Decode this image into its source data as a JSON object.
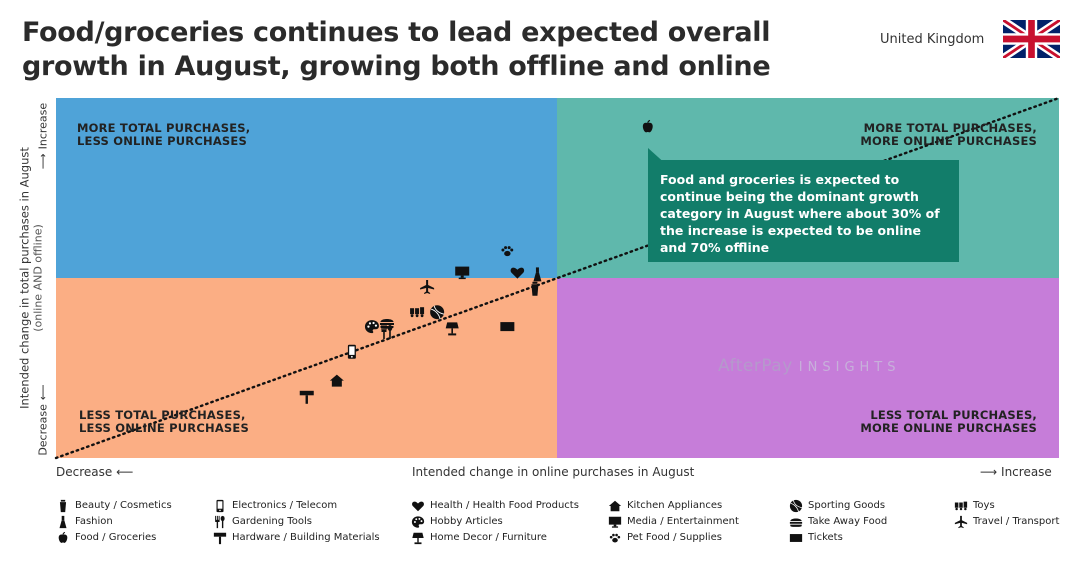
{
  "title": "Food/groceries continues to lead expected overall growth in August, growing both offline and online",
  "country": "United Kingdom",
  "watermark": {
    "brand": "AfterPay",
    "suffix": "INSIGHTS"
  },
  "chart_data": {
    "type": "scatter",
    "x_axis": {
      "label": "Intended change in online purchases in August",
      "low": "Decrease",
      "high": "Increase"
    },
    "y_axis": {
      "label": "Intended change in total purchases in August",
      "sublabel": "(online AND offline)",
      "low": "Decrease",
      "high": "Increase"
    },
    "quadrants": {
      "top_left": [
        "MORE TOTAL PURCHASES,",
        "LESS ONLINE PURCHASES"
      ],
      "top_right": [
        "MORE TOTAL PURCHASES,",
        "MORE ONLINE PURCHASES"
      ],
      "bottom_left": [
        "LESS TOTAL PURCHASES,",
        "LESS ONLINE PURCHASES"
      ],
      "bottom_right": [
        "LESS TOTAL PURCHASES,",
        "MORE ONLINE PURCHASES"
      ]
    },
    "colors": {
      "top_left": "#4fa3d8",
      "top_right": "#5fb8ac",
      "bottom_left": "#fbae84",
      "bottom_right": "#c67dd9",
      "callout": "#127d6a"
    },
    "callout": "Food and groceries is expected to continue being the dominant growth category in August where about 30% of the increase is expected to be online and 70% offline",
    "trend": {
      "type": "dotted-line",
      "x": [
        -1.0,
        1.0
      ],
      "y": [
        -1.0,
        1.0
      ]
    },
    "xlim": [
      -1,
      1
    ],
    "ylim": [
      -1,
      1
    ],
    "points": [
      {
        "category": "Food / Groceries",
        "icon": "apple",
        "x": 0.18,
        "y": 0.84
      },
      {
        "category": "Pet Food / Supplies",
        "icon": "paw",
        "x": -0.1,
        "y": 0.15
      },
      {
        "category": "Fashion",
        "icon": "dress",
        "x": -0.04,
        "y": 0.02
      },
      {
        "category": "Health / Health Food Products",
        "icon": "heart",
        "x": -0.08,
        "y": 0.03
      },
      {
        "category": "Beauty / Cosmetics",
        "icon": "bottle",
        "x": -0.045,
        "y": -0.06
      },
      {
        "category": "Media / Entertainment",
        "icon": "monitor",
        "x": -0.19,
        "y": 0.03
      },
      {
        "category": "Travel / Transport",
        "icon": "plane",
        "x": -0.26,
        "y": -0.05
      },
      {
        "category": "Toys",
        "icon": "train",
        "x": -0.28,
        "y": -0.19
      },
      {
        "category": "Sporting Goods",
        "icon": "ball",
        "x": -0.24,
        "y": -0.19
      },
      {
        "category": "Home Decor / Furniture",
        "icon": "lamp",
        "x": -0.21,
        "y": -0.28
      },
      {
        "category": "Tickets",
        "icon": "ticket",
        "x": -0.1,
        "y": -0.27
      },
      {
        "category": "Hobby Articles",
        "icon": "palette",
        "x": -0.37,
        "y": -0.27
      },
      {
        "category": "Take Away Food",
        "icon": "burger",
        "x": -0.34,
        "y": -0.25
      },
      {
        "category": "Gardening Tools",
        "icon": "tools",
        "x": -0.34,
        "y": -0.3
      },
      {
        "category": "Electronics / Telecom",
        "icon": "phone",
        "x": -0.41,
        "y": -0.41
      },
      {
        "category": "Kitchen Appliances",
        "icon": "house",
        "x": -0.44,
        "y": -0.57
      },
      {
        "category": "Hardware / Building Materials",
        "icon": "hammer",
        "x": -0.5,
        "y": -0.66
      }
    ]
  },
  "legend": [
    {
      "label": "Beauty / Cosmetics",
      "icon": "bottle"
    },
    {
      "label": "Fashion",
      "icon": "dress"
    },
    {
      "label": "Food / Groceries",
      "icon": "apple"
    },
    {
      "label": "Electronics / Telecom",
      "icon": "phone"
    },
    {
      "label": "Gardening Tools",
      "icon": "tools"
    },
    {
      "label": "Hardware / Building Materials",
      "icon": "hammer"
    },
    {
      "label": "Health / Health Food Products",
      "icon": "heart"
    },
    {
      "label": "Hobby Articles",
      "icon": "palette"
    },
    {
      "label": "Home Decor / Furniture",
      "icon": "lamp"
    },
    {
      "label": "Kitchen Appliances",
      "icon": "house"
    },
    {
      "label": "Media / Entertainment",
      "icon": "monitor"
    },
    {
      "label": "Pet Food / Supplies",
      "icon": "paw"
    },
    {
      "label": "Sporting Goods",
      "icon": "ball"
    },
    {
      "label": "Take Away Food",
      "icon": "burger"
    },
    {
      "label": "Tickets",
      "icon": "ticket"
    },
    {
      "label": "Toys",
      "icon": "train"
    },
    {
      "label": "Travel / Transport",
      "icon": "plane"
    }
  ]
}
